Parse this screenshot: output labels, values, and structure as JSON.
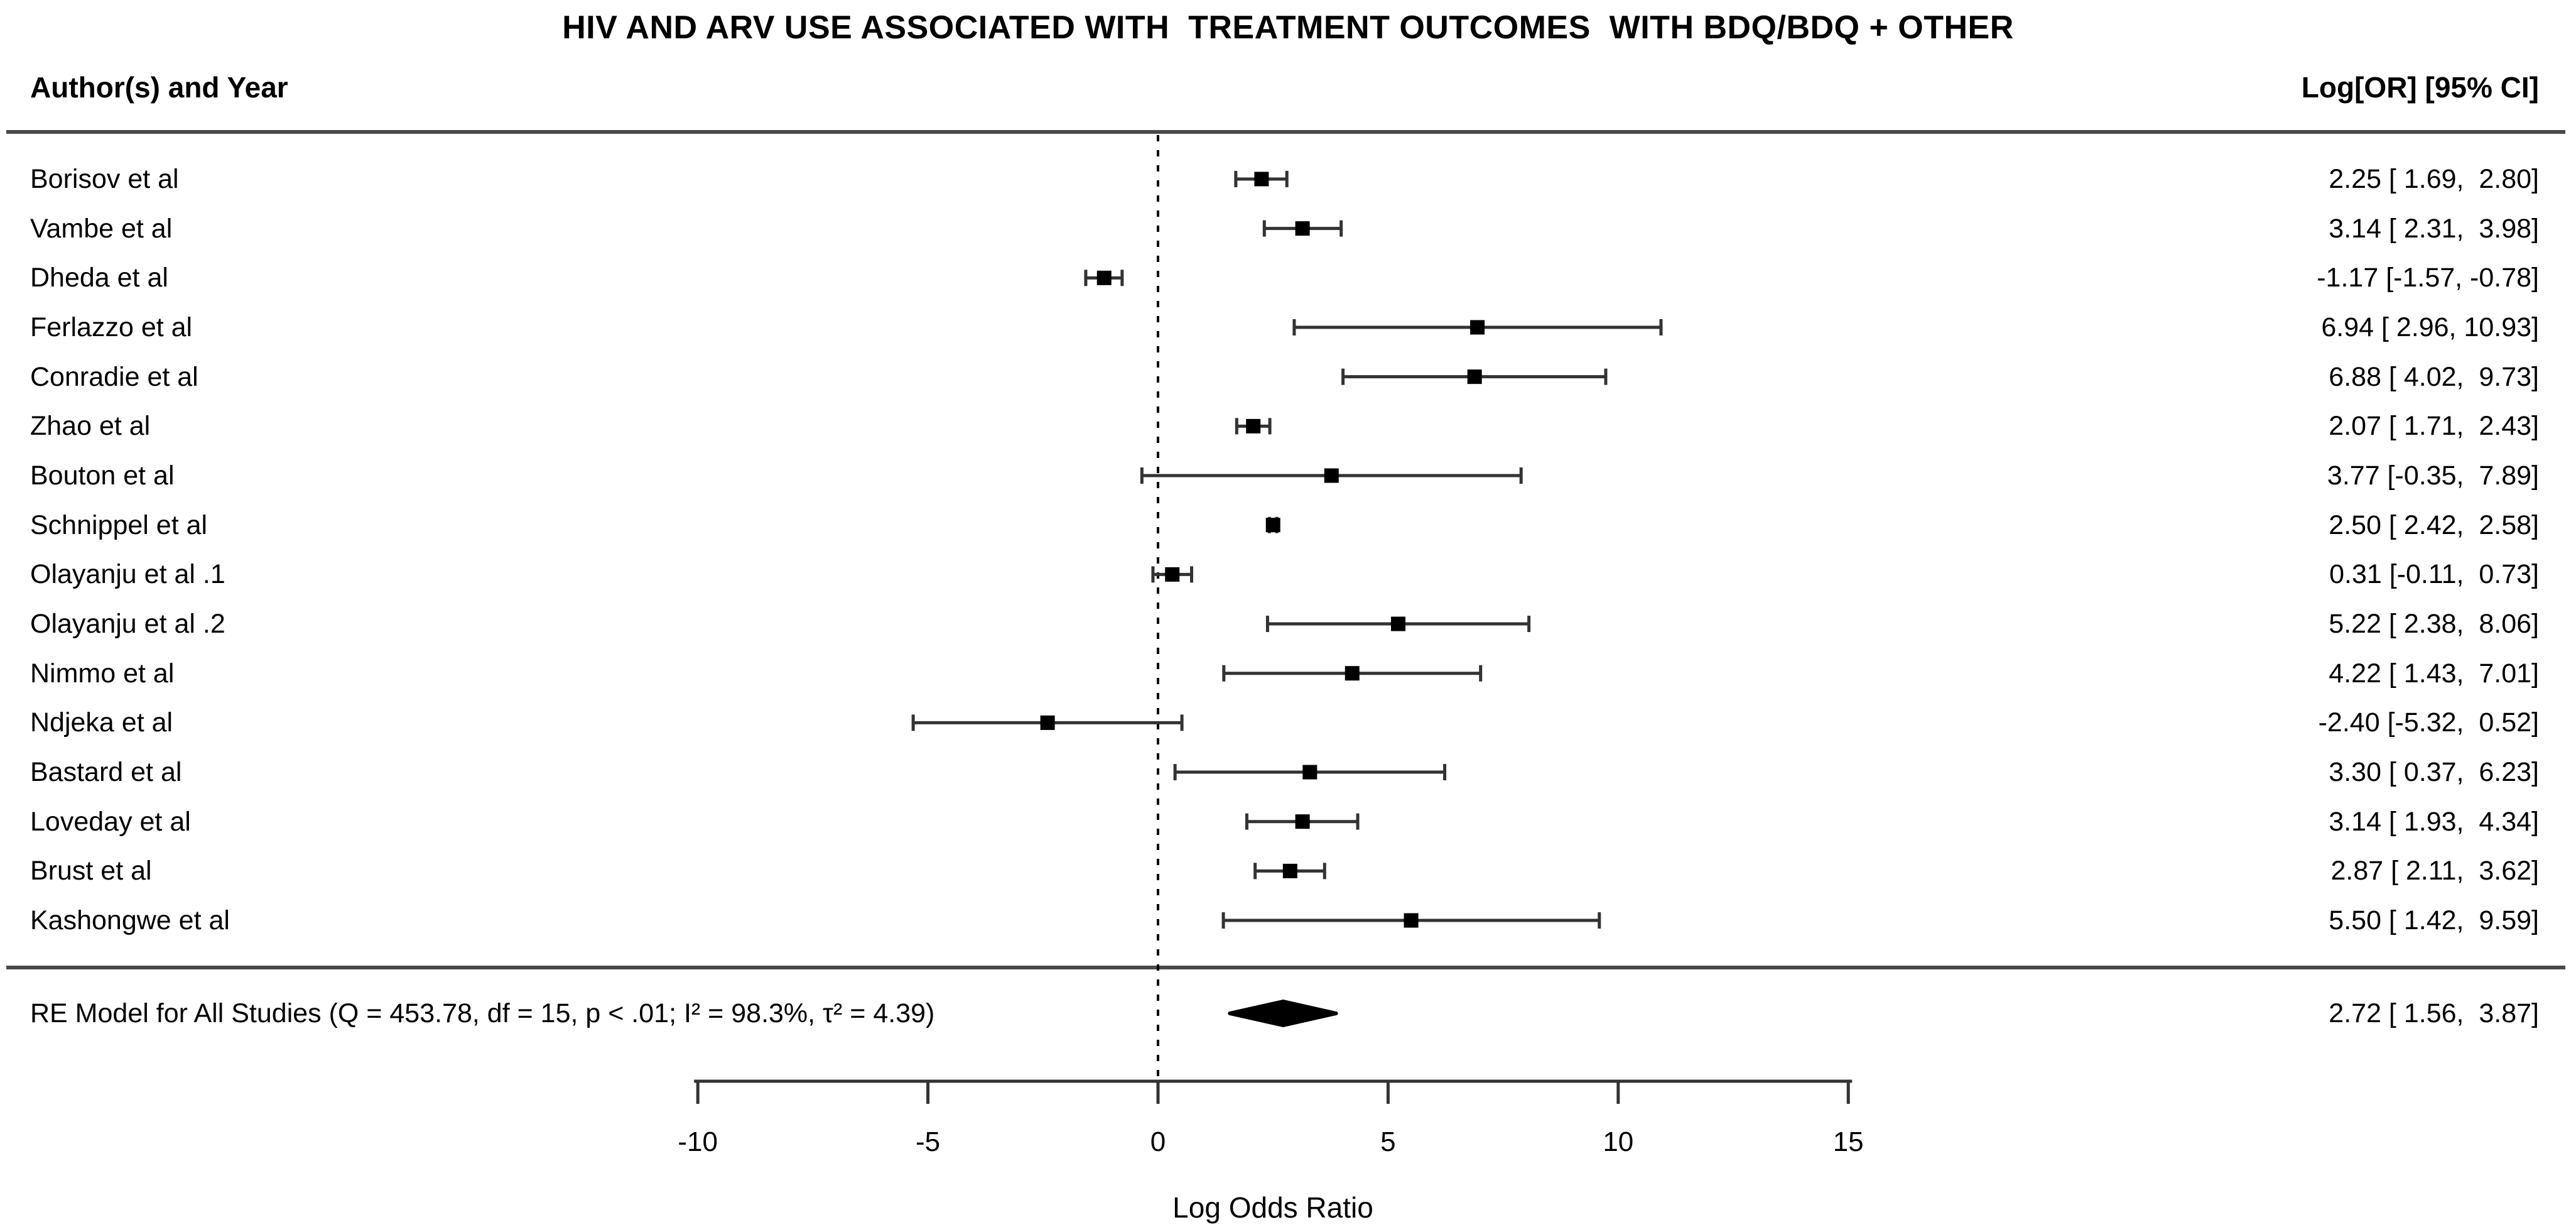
{
  "title": "HIV AND ARV USE ASSOCIATED WITH  TREATMENT OUTCOMES  WITH BDQ/BDQ + OTHER",
  "columns": {
    "left_header": "Author(s) and Year",
    "right_header": "Log[OR] [95% CI]"
  },
  "colors": {
    "text": "#000000",
    "rule": "#4a4a4a",
    "marker": "#000000",
    "axis": "#333333",
    "background": "#ffffff"
  },
  "chart_data": {
    "type": "forest",
    "title": "HIV AND ARV USE ASSOCIATED WITH  TREATMENT OUTCOMES  WITH BDQ/BDQ + OTHER",
    "xlabel": "Log Odds Ratio",
    "effect_measure": "Log Odds Ratio",
    "xlim": [
      -10,
      15
    ],
    "x_ticks": [
      -10,
      -5,
      0,
      5,
      10,
      15
    ],
    "reference_line_x": 0,
    "grid": false,
    "studies": [
      {
        "label": "Borisov et al",
        "est": 2.25,
        "lower": 1.69,
        "upper": 2.8,
        "ci_label": "2.25 [ 1.69,  2.80]"
      },
      {
        "label": "Vambe et al",
        "est": 3.14,
        "lower": 2.31,
        "upper": 3.98,
        "ci_label": "3.14 [ 2.31,  3.98]"
      },
      {
        "label": "Dheda et al",
        "est": -1.17,
        "lower": -1.57,
        "upper": -0.78,
        "ci_label": "-1.17 [-1.57, -0.78]"
      },
      {
        "label": "Ferlazzo et al",
        "est": 6.94,
        "lower": 2.96,
        "upper": 10.93,
        "ci_label": "6.94 [ 2.96, 10.93]"
      },
      {
        "label": "Conradie et al",
        "est": 6.88,
        "lower": 4.02,
        "upper": 9.73,
        "ci_label": "6.88 [ 4.02,  9.73]"
      },
      {
        "label": "Zhao et al",
        "est": 2.07,
        "lower": 1.71,
        "upper": 2.43,
        "ci_label": "2.07 [ 1.71,  2.43]"
      },
      {
        "label": "Bouton et al",
        "est": 3.77,
        "lower": -0.35,
        "upper": 7.89,
        "ci_label": "3.77 [-0.35,  7.89]"
      },
      {
        "label": "Schnippel et al",
        "est": 2.5,
        "lower": 2.42,
        "upper": 2.58,
        "ci_label": "2.50 [ 2.42,  2.58]"
      },
      {
        "label": "Olayanju et al .1",
        "est": 0.31,
        "lower": -0.11,
        "upper": 0.73,
        "ci_label": "0.31 [-0.11,  0.73]"
      },
      {
        "label": "Olayanju et al .2",
        "est": 5.22,
        "lower": 2.38,
        "upper": 8.06,
        "ci_label": "5.22 [ 2.38,  8.06]"
      },
      {
        "label": "Nimmo et al",
        "est": 4.22,
        "lower": 1.43,
        "upper": 7.01,
        "ci_label": "4.22 [ 1.43,  7.01]"
      },
      {
        "label": "Ndjeka et al",
        "est": -2.4,
        "lower": -5.32,
        "upper": 0.52,
        "ci_label": "-2.40 [-5.32,  0.52]"
      },
      {
        "label": "Bastard et al",
        "est": 3.3,
        "lower": 0.37,
        "upper": 6.23,
        "ci_label": "3.30 [ 0.37,  6.23]"
      },
      {
        "label": "Loveday et al",
        "est": 3.14,
        "lower": 1.93,
        "upper": 4.34,
        "ci_label": "3.14 [ 1.93,  4.34]"
      },
      {
        "label": "Brust et al",
        "est": 2.87,
        "lower": 2.11,
        "upper": 3.62,
        "ci_label": "2.87 [ 2.11,  3.62]"
      },
      {
        "label": "Kashongwe et al",
        "est": 5.5,
        "lower": 1.42,
        "upper": 9.59,
        "ci_label": "5.50 [ 1.42,  9.59]"
      }
    ],
    "summary": {
      "label": "RE Model for All Studies (Q = 453.78, df = 15, p < .01; I² = 98.3%, τ² = 4.39)",
      "est": 2.72,
      "lower": 1.56,
      "upper": 3.87,
      "ci_label": "2.72 [ 1.56,  3.87]"
    }
  }
}
